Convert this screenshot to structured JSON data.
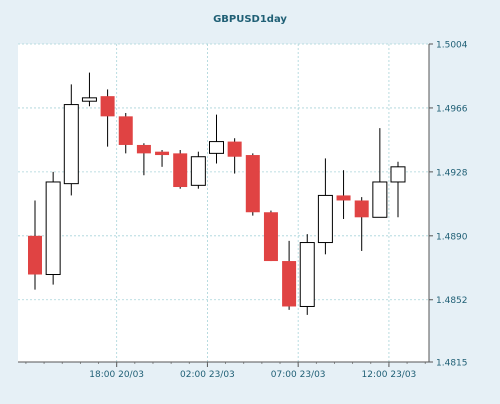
{
  "chart_data": {
    "type": "candlestick",
    "title": "GBPUSD1day",
    "xlabel": "",
    "ylabel": "",
    "ylim": [
      1.4815,
      1.5004
    ],
    "y_ticks": [
      "1.5004",
      "1.4966",
      "1.4928",
      "1.4890",
      "1.4852",
      "1.4815"
    ],
    "x_ticks": [
      {
        "label": "18:00 20/03",
        "index": 4.5
      },
      {
        "label": "02:00 23/03",
        "index": 9.5
      },
      {
        "label": "07:00 23/03",
        "index": 14.5
      },
      {
        "label": "12:00 23/03",
        "index": 19.5
      }
    ],
    "grid": true,
    "candles": [
      {
        "open": 1.489,
        "high": 1.4911,
        "low": 1.4858,
        "close": 1.4867
      },
      {
        "open": 1.4867,
        "high": 1.4928,
        "low": 1.4861,
        "close": 1.4922
      },
      {
        "open": 1.4921,
        "high": 1.498,
        "low": 1.4914,
        "close": 1.4968
      },
      {
        "open": 1.497,
        "high": 1.4987,
        "low": 1.4967,
        "close": 1.4972
      },
      {
        "open": 1.4973,
        "high": 1.4977,
        "low": 1.4943,
        "close": 1.4961
      },
      {
        "open": 1.4961,
        "high": 1.4963,
        "low": 1.4939,
        "close": 1.4944
      },
      {
        "open": 1.4944,
        "high": 1.4945,
        "low": 1.4926,
        "close": 1.4939
      },
      {
        "open": 1.494,
        "high": 1.4941,
        "low": 1.4931,
        "close": 1.4938
      },
      {
        "open": 1.4939,
        "high": 1.4941,
        "low": 1.4918,
        "close": 1.4919
      },
      {
        "open": 1.492,
        "high": 1.494,
        "low": 1.4918,
        "close": 1.4937
      },
      {
        "open": 1.4939,
        "high": 1.4962,
        "low": 1.4933,
        "close": 1.4946
      },
      {
        "open": 1.4946,
        "high": 1.4948,
        "low": 1.4927,
        "close": 1.4937
      },
      {
        "open": 1.4938,
        "high": 1.4939,
        "low": 1.4902,
        "close": 1.4904
      },
      {
        "open": 1.4904,
        "high": 1.4905,
        "low": 1.4875,
        "close": 1.4875
      },
      {
        "open": 1.4875,
        "high": 1.4887,
        "low": 1.4846,
        "close": 1.4848
      },
      {
        "open": 1.4848,
        "high": 1.4891,
        "low": 1.4843,
        "close": 1.4886
      },
      {
        "open": 1.4886,
        "high": 1.4936,
        "low": 1.4879,
        "close": 1.4914
      },
      {
        "open": 1.4914,
        "high": 1.4929,
        "low": 1.49,
        "close": 1.4911
      },
      {
        "open": 1.4911,
        "high": 1.4913,
        "low": 1.4881,
        "close": 1.4901
      },
      {
        "open": 1.4901,
        "high": 1.4954,
        "low": 1.4901,
        "close": 1.4922
      },
      {
        "open": 1.4922,
        "high": 1.4934,
        "low": 1.4901,
        "close": 1.4931
      }
    ],
    "colors": {
      "up_fill": "#ffffff",
      "up_stroke": "#000000",
      "down_fill": "#e04343",
      "wick": "#000000",
      "page_bg": "#e6f0f6",
      "plot_bg": "#ffffff",
      "gridline": "#a8d3d9",
      "tick_text": "#1f5f75",
      "title_text": "#1f5f75"
    }
  }
}
